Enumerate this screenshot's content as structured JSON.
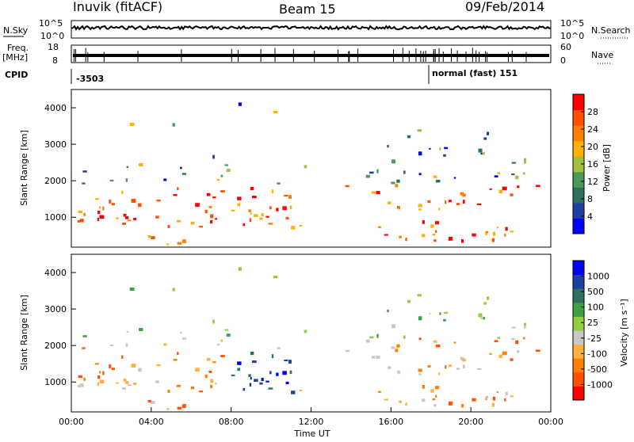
{
  "header": {
    "station": "Inuvik (fitACF)",
    "beam": "Beam 15",
    "date": "09/Feb/2014"
  },
  "strips": {
    "nsky_label": "N.Sky",
    "nsearch_label": "N.Search",
    "nsky_ticks": [
      "10^5",
      "10^0"
    ],
    "nsearch_ticks": [
      "10^5",
      "10^0"
    ],
    "freq_label_1": "Freq.",
    "freq_label_2": "[MHz]",
    "freq_ticks": [
      "18",
      "8"
    ],
    "nave_label": "Nave",
    "nave_ticks": [
      "60",
      "0"
    ],
    "cpid_label": "CPID",
    "cpid_left": "-3503",
    "cpid_right": "normal (fast) 151"
  },
  "colors": {
    "power_scale": [
      "#0000ff",
      "#2040a0",
      "#2f6f5f",
      "#4a9a5a",
      "#a0c040",
      "#ffb000",
      "#ff8000",
      "#ff5000",
      "#ff0000"
    ],
    "velocity_scale": [
      "#ff0000",
      "#ff5000",
      "#ff8000",
      "#ffb040",
      "#c8c8c8",
      "#90d040",
      "#40a040",
      "#2f6f5f",
      "#2040a0",
      "#0000ff"
    ]
  },
  "chart_data": [
    {
      "type": "heatmap",
      "name": "power",
      "ylabel": "Slant Range [km]",
      "colorbar_label": "Power [dB]",
      "colorbar_ticks": [
        "28",
        "24",
        "20",
        "16",
        "12",
        "8",
        "4"
      ],
      "y_ticks": [
        "1000",
        "2000",
        "3000",
        "4000"
      ],
      "ylim": [
        180,
        4500
      ],
      "xlim": [
        0,
        24
      ],
      "x_ticks": [
        "00:00",
        "04:00",
        "08:00",
        "12:00",
        "16:00",
        "20:00",
        "00:00"
      ],
      "xlabel": "Time UT"
    },
    {
      "type": "heatmap",
      "name": "velocity",
      "ylabel": "Slant Range [km]",
      "colorbar_label": "Velocity [m s⁻¹]",
      "colorbar_ticks": [
        "1000",
        "500",
        "100",
        "25",
        "-25",
        "-100",
        "-500",
        "-1000"
      ],
      "y_ticks": [
        "1000",
        "2000",
        "3000",
        "4000"
      ],
      "ylim": [
        180,
        4500
      ],
      "xlim": [
        0,
        24
      ],
      "x_ticks": [
        "00:00",
        "04:00",
        "08:00",
        "12:00",
        "16:00",
        "20:00",
        "00:00"
      ],
      "xlabel": "Time UT"
    }
  ]
}
